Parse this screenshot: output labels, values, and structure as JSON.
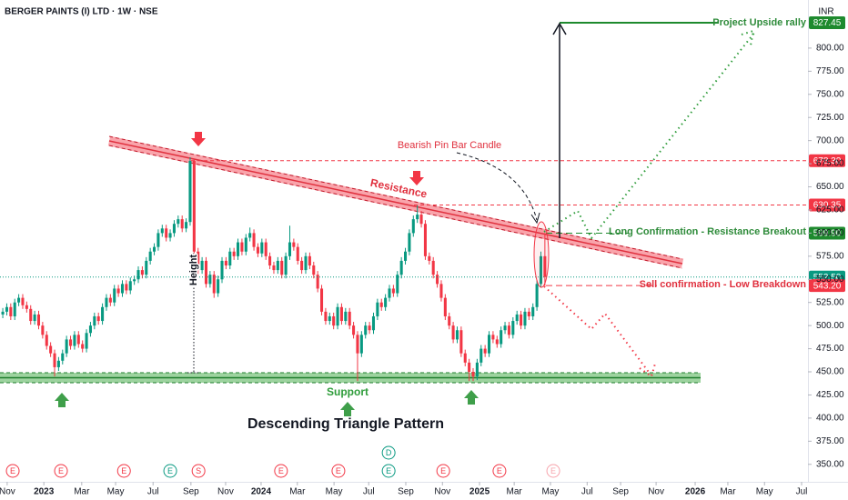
{
  "chart_data": {
    "type": "candlestick",
    "title": "BERGER PAINTS (I) LTD · 1W · NSE",
    "currency": "INR",
    "up_color": "#089981",
    "down_color": "#f23645",
    "grid": false,
    "xlim": [
      -0.7,
      202
    ],
    "ylim": [
      336,
      852
    ],
    "yticks": [
      {
        "value": 350,
        "label": "350.00"
      },
      {
        "value": 375,
        "label": "375.00"
      },
      {
        "value": 400,
        "label": "400.00"
      },
      {
        "value": 425,
        "label": "425.00"
      },
      {
        "value": 450,
        "label": "450.00"
      },
      {
        "value": 475,
        "label": "475.00"
      },
      {
        "value": 500,
        "label": "500.00"
      },
      {
        "value": 525,
        "label": "525.00"
      },
      {
        "value": 550,
        "label": "550.00"
      },
      {
        "value": 575,
        "label": "575.00"
      },
      {
        "value": 600,
        "label": "600.00"
      },
      {
        "value": 625,
        "label": "625.00"
      },
      {
        "value": 650,
        "label": "650.00"
      },
      {
        "value": 675,
        "label": "675.00"
      },
      {
        "value": 700,
        "label": "700.00"
      },
      {
        "value": 725,
        "label": "725.00"
      },
      {
        "value": 750,
        "label": "750.00"
      },
      {
        "value": 775,
        "label": "775.00"
      },
      {
        "value": 800,
        "label": "800.00"
      }
    ],
    "xticks": [
      {
        "value": 1.1,
        "label": "Nov"
      },
      {
        "value": 10.3,
        "label": "2023"
      },
      {
        "value": 19.8,
        "label": "Mar"
      },
      {
        "value": 28.3,
        "label": "May"
      },
      {
        "value": 37.7,
        "label": "Jul"
      },
      {
        "value": 47.2,
        "label": "Sep"
      },
      {
        "value": 55.9,
        "label": "Nov"
      },
      {
        "value": 64.8,
        "label": "2024"
      },
      {
        "value": 73.9,
        "label": "Mar"
      },
      {
        "value": 83.1,
        "label": "May"
      },
      {
        "value": 91.8,
        "label": "Jul"
      },
      {
        "value": 101.1,
        "label": "Sep"
      },
      {
        "value": 110.3,
        "label": "Nov"
      },
      {
        "value": 119.6,
        "label": "2025"
      },
      {
        "value": 128.3,
        "label": "Mar"
      },
      {
        "value": 137.4,
        "label": "May"
      },
      {
        "value": 146.6,
        "label": "Jul"
      },
      {
        "value": 155,
        "label": "Sep"
      },
      {
        "value": 163.9,
        "label": "Nov"
      },
      {
        "value": 173.7,
        "label": "2026"
      },
      {
        "value": 181.9,
        "label": "Mar"
      },
      {
        "value": 191.1,
        "label": "May"
      },
      {
        "value": 200.4,
        "label": "Jul"
      }
    ],
    "candles": [
      [
        512,
        519,
        508,
        515
      ],
      [
        515,
        524,
        511,
        520
      ],
      [
        520,
        524,
        506,
        510
      ],
      [
        510,
        529,
        506,
        525
      ],
      [
        525,
        534,
        521,
        530
      ],
      [
        530,
        534,
        518,
        522
      ],
      [
        522,
        526,
        514,
        518
      ],
      [
        518,
        522,
        501,
        505
      ],
      [
        505,
        516,
        501,
        512
      ],
      [
        512,
        516,
        496,
        500
      ],
      [
        500,
        504,
        486,
        490
      ],
      [
        490,
        494,
        474,
        478
      ],
      [
        478,
        482,
        466,
        470
      ],
      [
        470,
        474,
        445,
        455
      ],
      [
        455,
        466,
        451,
        462
      ],
      [
        462,
        474,
        458,
        470
      ],
      [
        470,
        489,
        466,
        485
      ],
      [
        485,
        489,
        474,
        478
      ],
      [
        478,
        494,
        474,
        490
      ],
      [
        490,
        494,
        476,
        480
      ],
      [
        480,
        484,
        471,
        475
      ],
      [
        475,
        496,
        471,
        492
      ],
      [
        492,
        504,
        488,
        500
      ],
      [
        500,
        514,
        496,
        510
      ],
      [
        510,
        514,
        501,
        505
      ],
      [
        505,
        524,
        501,
        520
      ],
      [
        520,
        534,
        516,
        530
      ],
      [
        530,
        534,
        521,
        525
      ],
      [
        525,
        544,
        521,
        540
      ],
      [
        540,
        544,
        531,
        535
      ],
      [
        535,
        549,
        531,
        545
      ],
      [
        545,
        549,
        534,
        538
      ],
      [
        538,
        552,
        534,
        548
      ],
      [
        548,
        554,
        544,
        550
      ],
      [
        550,
        564,
        546,
        560
      ],
      [
        560,
        564,
        551,
        555
      ],
      [
        555,
        574,
        551,
        570
      ],
      [
        570,
        584,
        566,
        580
      ],
      [
        580,
        589,
        576,
        585
      ],
      [
        585,
        604,
        581,
        600
      ],
      [
        600,
        609,
        596,
        605
      ],
      [
        605,
        609,
        591,
        595
      ],
      [
        595,
        604,
        591,
        600
      ],
      [
        600,
        614,
        596,
        610
      ],
      [
        610,
        619,
        606,
        615
      ],
      [
        615,
        619,
        601,
        605
      ],
      [
        605,
        616,
        601,
        612
      ],
      [
        612,
        682,
        608,
        678
      ],
      [
        678,
        680,
        575,
        580
      ],
      [
        580,
        584,
        556,
        560
      ],
      [
        560,
        574,
        556,
        570
      ],
      [
        570,
        574,
        541,
        545
      ],
      [
        545,
        559,
        541,
        555
      ],
      [
        555,
        559,
        530,
        535
      ],
      [
        535,
        554,
        531,
        550
      ],
      [
        550,
        574,
        546,
        570
      ],
      [
        570,
        574,
        561,
        565
      ],
      [
        565,
        584,
        561,
        580
      ],
      [
        580,
        584,
        571,
        575
      ],
      [
        575,
        594,
        571,
        590
      ],
      [
        590,
        594,
        576,
        580
      ],
      [
        580,
        599,
        576,
        595
      ],
      [
        595,
        606,
        591,
        600
      ],
      [
        600,
        604,
        581,
        585
      ],
      [
        585,
        589,
        574,
        578
      ],
      [
        578,
        594,
        574,
        590
      ],
      [
        590,
        594,
        571,
        575
      ],
      [
        575,
        579,
        561,
        565
      ],
      [
        565,
        569,
        556,
        560
      ],
      [
        560,
        574,
        556,
        570
      ],
      [
        570,
        574,
        551,
        555
      ],
      [
        555,
        579,
        551,
        575
      ],
      [
        575,
        608,
        571,
        590
      ],
      [
        590,
        594,
        581,
        585
      ],
      [
        585,
        589,
        566,
        570
      ],
      [
        570,
        574,
        556,
        560
      ],
      [
        560,
        579,
        556,
        575
      ],
      [
        575,
        579,
        561,
        565
      ],
      [
        565,
        569,
        551,
        555
      ],
      [
        555,
        559,
        536,
        540
      ],
      [
        540,
        544,
        511,
        515
      ],
      [
        515,
        519,
        501,
        505
      ],
      [
        505,
        514,
        501,
        510
      ],
      [
        510,
        514,
        496,
        500
      ],
      [
        500,
        524,
        496,
        520
      ],
      [
        520,
        524,
        501,
        505
      ],
      [
        505,
        519,
        501,
        515
      ],
      [
        515,
        519,
        496,
        500
      ],
      [
        500,
        504,
        486,
        490
      ],
      [
        490,
        494,
        440,
        470
      ],
      [
        470,
        494,
        466,
        490
      ],
      [
        490,
        504,
        486,
        500
      ],
      [
        500,
        504,
        491,
        495
      ],
      [
        495,
        514,
        491,
        510
      ],
      [
        510,
        529,
        506,
        525
      ],
      [
        525,
        529,
        516,
        520
      ],
      [
        520,
        534,
        516,
        530
      ],
      [
        530,
        544,
        526,
        540
      ],
      [
        540,
        544,
        531,
        535
      ],
      [
        535,
        559,
        531,
        555
      ],
      [
        555,
        574,
        551,
        570
      ],
      [
        570,
        584,
        566,
        580
      ],
      [
        580,
        604,
        576,
        600
      ],
      [
        600,
        619,
        596,
        615
      ],
      [
        615,
        630,
        611,
        620
      ],
      [
        620,
        624,
        606,
        610
      ],
      [
        610,
        614,
        571,
        575
      ],
      [
        575,
        579,
        566,
        570
      ],
      [
        570,
        574,
        551,
        555
      ],
      [
        555,
        559,
        541,
        545
      ],
      [
        545,
        549,
        526,
        530
      ],
      [
        530,
        534,
        506,
        510
      ],
      [
        510,
        514,
        496,
        500
      ],
      [
        500,
        504,
        481,
        485
      ],
      [
        485,
        499,
        481,
        495
      ],
      [
        495,
        499,
        466,
        470
      ],
      [
        470,
        474,
        456,
        460
      ],
      [
        460,
        464,
        440,
        450
      ],
      [
        450,
        454,
        440,
        445
      ],
      [
        445,
        464,
        441,
        460
      ],
      [
        460,
        479,
        456,
        475
      ],
      [
        475,
        479,
        466,
        470
      ],
      [
        470,
        494,
        466,
        490
      ],
      [
        490,
        494,
        481,
        485
      ],
      [
        485,
        489,
        476,
        480
      ],
      [
        480,
        499,
        476,
        495
      ],
      [
        495,
        504,
        491,
        500
      ],
      [
        500,
        504,
        486,
        490
      ],
      [
        490,
        509,
        486,
        505
      ],
      [
        505,
        516,
        501,
        512
      ],
      [
        512,
        516,
        496,
        500
      ],
      [
        500,
        519,
        496,
        515
      ],
      [
        515,
        519,
        506,
        510
      ],
      [
        510,
        524,
        506,
        520
      ],
      [
        520,
        549,
        516,
        545
      ],
      [
        545,
        580,
        541,
        575
      ],
      [
        575,
        600,
        543.2,
        552.5
      ]
    ],
    "price_levels": [
      {
        "value": 827.45,
        "label": "827.45",
        "color": "#1e8a2e"
      },
      {
        "value": 678.3,
        "label": "678.30",
        "color": "#f23645"
      },
      {
        "value": 630.35,
        "label": "630.35",
        "color": "#f23645"
      },
      {
        "value": 599.9,
        "label": "599.90",
        "color": "#1e8a2e"
      },
      {
        "value": 552.5,
        "label": "552.50",
        "color": "#089981"
      },
      {
        "value": 543.2,
        "label": "543.20",
        "color": "#f23645"
      }
    ],
    "annotations": {
      "pin_bar": "Bearish Pin Bar Candle",
      "resistance": "Resistance",
      "height": "Height",
      "support": "Support",
      "pattern": "Descending Triangle Pattern",
      "long": "Long Confirmation - Resistance Breakout",
      "sell": "Sell confirmation - Low Breakdown",
      "upside": "Project Upside rally"
    },
    "events": [
      {
        "x": 2.5,
        "label": "E",
        "color": "#f23645"
      },
      {
        "x": 14.6,
        "label": "E",
        "color": "#f23645"
      },
      {
        "x": 30.4,
        "label": "E",
        "color": "#f23645"
      },
      {
        "x": 42,
        "label": "E",
        "color": "#089981"
      },
      {
        "x": 49.1,
        "label": "S",
        "color": "#f23645"
      },
      {
        "x": 69.8,
        "label": "E",
        "color": "#f23645"
      },
      {
        "x": 84.2,
        "label": "E",
        "color": "#f23645"
      },
      {
        "x": 96.8,
        "label": "E",
        "color": "#089981"
      },
      {
        "x": 110.5,
        "label": "E",
        "color": "#f23645"
      },
      {
        "x": 124.6,
        "label": "E",
        "color": "#f23645"
      },
      {
        "x": 138.1,
        "label": "E",
        "color": "#f7a3ab"
      }
    ],
    "dividend": {
      "x": 96.8,
      "label": "D"
    }
  }
}
